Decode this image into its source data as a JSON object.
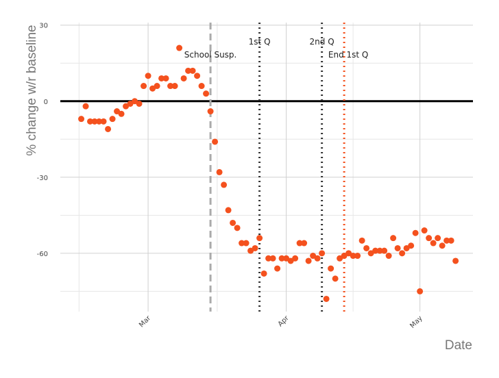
{
  "chart_data": {
    "type": "scatter",
    "y_label": "% change w/r baseline",
    "x_label": "Date",
    "color": "#f4511e",
    "x": [
      -15,
      -14,
      -13,
      -12,
      -11,
      -10,
      -9,
      -8,
      -7,
      -6,
      -5,
      -4,
      -3,
      -2,
      -1,
      0,
      1,
      2,
      3,
      4,
      5,
      6,
      7,
      8,
      9,
      10,
      11,
      12,
      13,
      14,
      15,
      16,
      17,
      18,
      19,
      20,
      21,
      22,
      23,
      24,
      25,
      26,
      27,
      28,
      29,
      30,
      31,
      32,
      33,
      34,
      35,
      36,
      37,
      38,
      39,
      40,
      41,
      42,
      43,
      44,
      45,
      46,
      47,
      48,
      49,
      50,
      51,
      52,
      53,
      54,
      55,
      56,
      57,
      58,
      59,
      60,
      61,
      62,
      63,
      64,
      65,
      66,
      67,
      68,
      69
    ],
    "values": [
      -7,
      -2,
      -8,
      -8,
      -8,
      -8,
      -11,
      -7,
      -4,
      -5,
      -2,
      -1,
      0,
      -1,
      6,
      10,
      5,
      6,
      9,
      9,
      6,
      6,
      21,
      9,
      12,
      12,
      10,
      6,
      3,
      -4,
      -16,
      -28,
      -33,
      -43,
      -48,
      -50,
      -56,
      -56,
      -59,
      -58,
      -54,
      -68,
      -62,
      -62,
      -66,
      -62,
      -62,
      -63,
      -62,
      -56,
      -56,
      -63,
      -61,
      -62,
      -60,
      -78,
      -66,
      -70,
      -62,
      -61,
      -60,
      -61,
      -61,
      -55,
      -58,
      -60,
      -59,
      -59,
      -59,
      -61,
      -54,
      -58,
      -60,
      -58,
      -57,
      -52,
      -75,
      -51,
      -54,
      -56,
      -54,
      -57,
      -55,
      -55,
      -63
    ],
    "xlim": [
      -19.7,
      72.9
    ],
    "ylim": [
      -83,
      31
    ],
    "xticks": [
      {
        "value": 0,
        "label": "Mar"
      },
      {
        "value": 31,
        "label": "Apr"
      },
      {
        "value": 61,
        "label": "May"
      }
    ],
    "yticks": [
      30,
      0,
      -30,
      -60
    ],
    "grid": true,
    "zero_line": true,
    "vlines": [
      {
        "x": 14,
        "label": "School Susp.",
        "color": "#aaaaaa",
        "style": "dashed"
      },
      {
        "x": 25,
        "label": "1st Q",
        "color": "#333333",
        "style": "dotted"
      },
      {
        "x": 39,
        "label": "2nd Q",
        "color": "#333333",
        "style": "dotted"
      },
      {
        "x": 44,
        "label": "End 1st Q",
        "color": "#f4511e",
        "style": "dotted"
      }
    ]
  }
}
